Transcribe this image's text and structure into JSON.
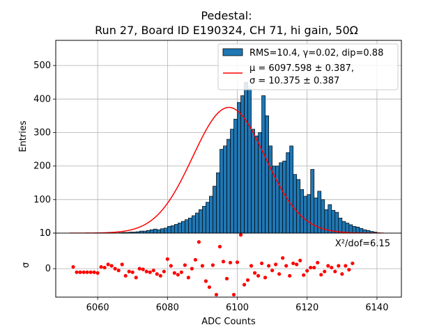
{
  "chart_data": [
    {
      "type": "bar",
      "title_line1": "Pedestal:",
      "title_line2": "Run 27, Board ID E190324, CH 71, hi gain, 50Ω",
      "xlabel": "",
      "ylabel": "Entries",
      "xlim": [
        6048,
        6147
      ],
      "ylim": [
        0,
        575
      ],
      "xticks": [
        6060,
        6080,
        6100,
        6120,
        6140
      ],
      "yticks": [
        0,
        100,
        200,
        300,
        400,
        500
      ],
      "grid": true,
      "bar_color": "#1f77b4",
      "fit_color": "#ff0000",
      "bin_width": 1,
      "bin_start": 6052,
      "values": [
        0,
        0,
        0,
        0,
        0,
        0,
        0,
        0,
        0,
        0,
        0,
        0,
        0,
        0,
        1,
        2,
        2,
        3,
        3,
        4,
        6,
        6,
        8,
        10,
        12,
        10,
        13,
        15,
        20,
        22,
        26,
        30,
        35,
        40,
        45,
        52,
        60,
        70,
        80,
        92,
        110,
        140,
        180,
        250,
        260,
        280,
        310,
        340,
        390,
        410,
        450,
        430,
        310,
        290,
        300,
        410,
        350,
        260,
        200,
        200,
        210,
        215,
        240,
        260,
        175,
        160,
        130,
        110,
        115,
        190,
        105,
        125,
        100,
        70,
        85,
        68,
        62,
        45,
        35,
        30,
        25,
        20,
        18,
        14,
        10,
        8,
        5,
        3,
        1,
        0
      ],
      "fit": {
        "mu": 6097.598,
        "sigma": 10.375,
        "amplitude": 375
      },
      "legend": {
        "position": "upper right",
        "entries": [
          {
            "label": "RMS=10.4, γ=0.02, dip=0.88",
            "kind": "patch"
          },
          {
            "label_line1": "μ = 6097.598 ± 0.387,",
            "label_line2": "σ = 10.375 ± 0.387",
            "kind": "line"
          }
        ]
      }
    },
    {
      "type": "scatter",
      "xlabel": "ADC Counts",
      "ylabel": "σ",
      "xlim": [
        6048,
        6147
      ],
      "ylim": [
        -8,
        10
      ],
      "xticks": [
        6060,
        6080,
        6100,
        6120,
        6140
      ],
      "yticks": [
        0,
        10
      ],
      "grid": true,
      "point_color": "#ff0000",
      "annotation": "Χ²/dof=6.15",
      "x": [
        6053,
        6054,
        6055,
        6056,
        6057,
        6058,
        6059,
        6060,
        6061,
        6062,
        6063,
        6064,
        6065,
        6066,
        6067,
        6068,
        6069,
        6070,
        6071,
        6072,
        6073,
        6074,
        6075,
        6076,
        6077,
        6078,
        6079,
        6080,
        6081,
        6082,
        6083,
        6084,
        6085,
        6086,
        6087,
        6088,
        6089,
        6090,
        6091,
        6092,
        6093,
        6094,
        6095,
        6096,
        6097,
        6098,
        6099,
        6100,
        6101,
        6102,
        6103,
        6104,
        6105,
        6106,
        6107,
        6108,
        6109,
        6110,
        6111,
        6112,
        6113,
        6114,
        6115,
        6116,
        6117,
        6118,
        6119,
        6120,
        6121,
        6122,
        6123,
        6124,
        6125,
        6126,
        6127,
        6128,
        6129,
        6130,
        6131,
        6132,
        6133
      ],
      "y": [
        0.5,
        -1,
        -1,
        -1,
        -1,
        -1,
        -1,
        -1.2,
        0.5,
        0.3,
        1.2,
        0.8,
        0,
        -0.5,
        1.2,
        -2,
        -0.8,
        -1,
        -2.5,
        0,
        -0.2,
        -0.8,
        -1,
        -0.5,
        -1.5,
        -2,
        -0.8,
        2.7,
        0.8,
        -1.2,
        -1.7,
        -1,
        1,
        -2.5,
        0,
        2.5,
        7.5,
        0.8,
        -3.5,
        -5.2,
        1,
        -7.3,
        6.2,
        2,
        -2.8,
        1.7,
        -7.3,
        1.8,
        9.5,
        -4.5,
        -3.2,
        0.8,
        -1.2,
        -2,
        1.5,
        -2.5,
        0.8,
        -0.5,
        1.2,
        -1.5,
        3,
        0.8,
        -2,
        1.5,
        1.2,
        2.3,
        -1.8,
        -0.6,
        0.3,
        0.3,
        1.7,
        -1.7,
        -0.8,
        0.8,
        0.3,
        -0.8,
        0.8,
        -1.5,
        0.8,
        -0.3,
        1.5
      ]
    }
  ]
}
